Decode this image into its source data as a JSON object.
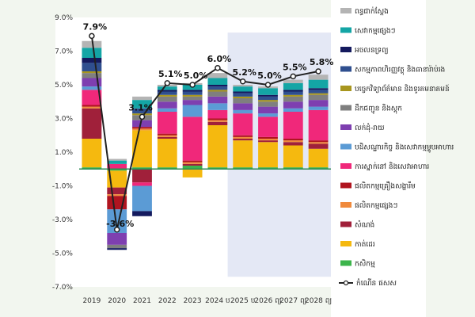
{
  "chart_data": {
    "type": "bar",
    "stacked": true,
    "categories": [
      "2019",
      "2020",
      "2021",
      "2022",
      "2023",
      "2024 ប",
      "2025 ប",
      "2026 ព្យ",
      "2027 ព្យ",
      "2028 ព្យ"
    ],
    "ylim": [
      -7,
      9
    ],
    "yticks": [
      9,
      7,
      5,
      3,
      1,
      -1,
      -3,
      -5,
      -7
    ],
    "ytick_labels": [
      "9.0%",
      "7.0%",
      "5.0%",
      "3.0%",
      "1.0%",
      "-1.0%",
      "-3.0%",
      "-5.0%",
      "-7.0%"
    ],
    "projection_from_index": 6,
    "series": [
      {
        "name": "កសិកម្ម",
        "color": "#3cb44b",
        "values": [
          0.1,
          -0.1,
          0.1,
          0.1,
          0.2,
          0.1,
          0.1,
          0.1,
          0.1,
          0.1
        ]
      },
      {
        "name": "កាត់ដេរ",
        "color": "#f5b90f",
        "values": [
          1.7,
          -1.0,
          2.2,
          1.7,
          -0.5,
          2.5,
          1.6,
          1.5,
          1.3,
          1.1
        ]
      },
      {
        "name": "សំណង់",
        "color": "#a0203a",
        "values": [
          1.8,
          -0.4,
          -0.8,
          0.1,
          0.1,
          0.2,
          0.1,
          0.1,
          0.2,
          0.3
        ]
      },
      {
        "name": "ផលិតកម្មផ្សេងៗ",
        "color": "#f08a3c",
        "values": [
          0.1,
          -0.1,
          0.1,
          0.1,
          0.1,
          0.1,
          0.1,
          0.1,
          0.1,
          0.1
        ]
      },
      {
        "name": "ផលិតកម្មគ្រឿងសង្ហារឹម",
        "color": "#b0141f",
        "values": [
          0.1,
          -0.8,
          0.1,
          0.1,
          0.1,
          0.1,
          0.1,
          0.1,
          0.1,
          0.1
        ]
      },
      {
        "name": "ការស្នាក់នៅ និងសេវាអាហារ",
        "color": "#f0287a",
        "values": [
          0.9,
          0.3,
          -0.2,
          1.3,
          2.6,
          0.5,
          1.3,
          1.2,
          1.6,
          1.8
        ]
      },
      {
        "name": "បដិសណ្ឋារកិច្ច និងសេវាកម្មម្ហូបអាហារ",
        "color": "#5b9bd5",
        "values": [
          0.2,
          -1.4,
          -1.5,
          0.2,
          0.7,
          0.4,
          0.2,
          0.2,
          0.2,
          0.2
        ]
      },
      {
        "name": "លក់ដុំ-រាយ",
        "color": "#7e3fb0",
        "values": [
          0.5,
          -0.7,
          0.4,
          0.4,
          0.3,
          0.4,
          0.4,
          0.4,
          0.4,
          0.4
        ]
      },
      {
        "name": "ដឹកជញ្ជូន និងស្តុក",
        "color": "#7f7f7f",
        "values": [
          0.3,
          -0.2,
          0.3,
          0.3,
          0.2,
          0.3,
          0.3,
          0.3,
          0.3,
          0.3
        ]
      },
      {
        "name": "បច្ចេកវិទ្យាព័ត៌មាន និងទូរគមនាគមន៍",
        "color": "#a8961e",
        "values": [
          0.1,
          0.0,
          0.1,
          0.1,
          0.1,
          0.1,
          0.1,
          0.1,
          0.1,
          0.1
        ]
      },
      {
        "name": "សកម្មភាពហិរញ្ញវត្ថុ និងធានារ៉ាប់រង",
        "color": "#2f4f8f",
        "values": [
          0.5,
          0.0,
          0.3,
          0.2,
          0.2,
          0.2,
          0.2,
          0.2,
          0.2,
          0.2
        ]
      },
      {
        "name": "អចលនទ្រព្យ",
        "color": "#141a5e",
        "values": [
          0.3,
          -0.1,
          -0.3,
          0.1,
          0.1,
          0.1,
          0.1,
          0.1,
          0.1,
          0.1
        ]
      },
      {
        "name": "សេវាកម្មផ្សេងៗ",
        "color": "#14a5a5",
        "values": [
          0.6,
          0.2,
          0.5,
          0.2,
          0.3,
          0.4,
          0.3,
          0.4,
          0.4,
          0.5
        ]
      },
      {
        "name": "ពន្ធជាក់ស្តែង",
        "color": "#b4b4b4",
        "values": [
          0.4,
          0.1,
          0.2,
          0.1,
          0.1,
          0.3,
          0.1,
          0.1,
          0.2,
          0.3
        ]
      }
    ],
    "line": {
      "name": "កំណើន ផសស",
      "values": [
        7.9,
        -3.6,
        3.1,
        5.1,
        5.0,
        6.0,
        5.2,
        5.0,
        5.5,
        5.8
      ],
      "labels": [
        "7.9%",
        "-3.6%",
        "3.1%",
        "5.1%",
        "5.0%",
        "6.0%",
        "5.2%",
        "5.0%",
        "5.5%",
        "5.8%"
      ]
    },
    "legend_placement": "right",
    "grid": false
  }
}
